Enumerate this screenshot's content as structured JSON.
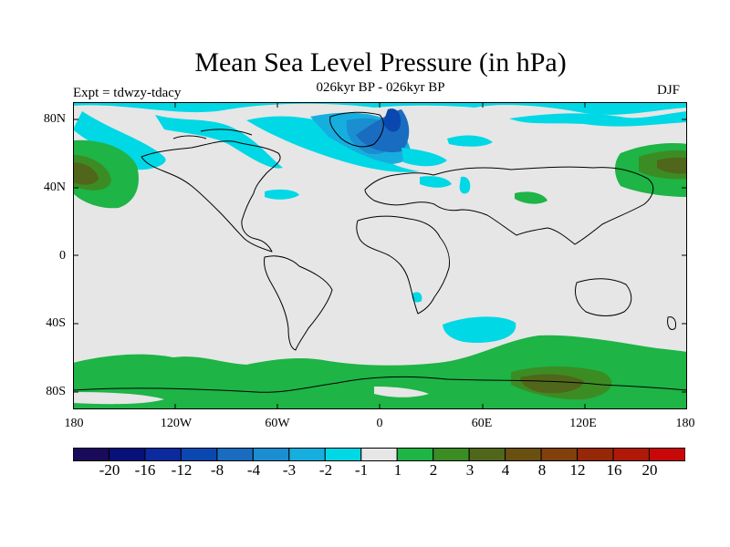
{
  "title": "Mean Sea Level Pressure (in hPa)",
  "subtitle": "026kyr BP - 026kyr BP",
  "left_label": "Expt = tdwzy-tdacy",
  "right_label": "DJF",
  "map": {
    "projection": "cylindrical-equidistant",
    "lon_range": [
      -180,
      180
    ],
    "lat_range": [
      -90,
      90
    ],
    "background_color": "#e6e6e6",
    "lat_ticks": [
      "80N",
      "40N",
      "0",
      "40S",
      "80S"
    ],
    "lon_ticks": [
      "180",
      "120W",
      "60W",
      "0",
      "60E",
      "120E",
      "180"
    ]
  },
  "colorbar": {
    "colors": [
      "#1a0a5a",
      "#08107a",
      "#0a2a9e",
      "#0a48b0",
      "#1a6cc0",
      "#1a8ed0",
      "#16aede",
      "#00d8e6",
      "#e6e6e6",
      "#1eb446",
      "#3c8c24",
      "#50661a",
      "#6a5010",
      "#82400c",
      "#962808",
      "#b01808",
      "#c80808"
    ],
    "labels": [
      "-20",
      "-16",
      "-12",
      "-8",
      "-4",
      "-3",
      "-2",
      "-1",
      "1",
      "2",
      "3",
      "4",
      "8",
      "12",
      "16",
      "20"
    ]
  }
}
